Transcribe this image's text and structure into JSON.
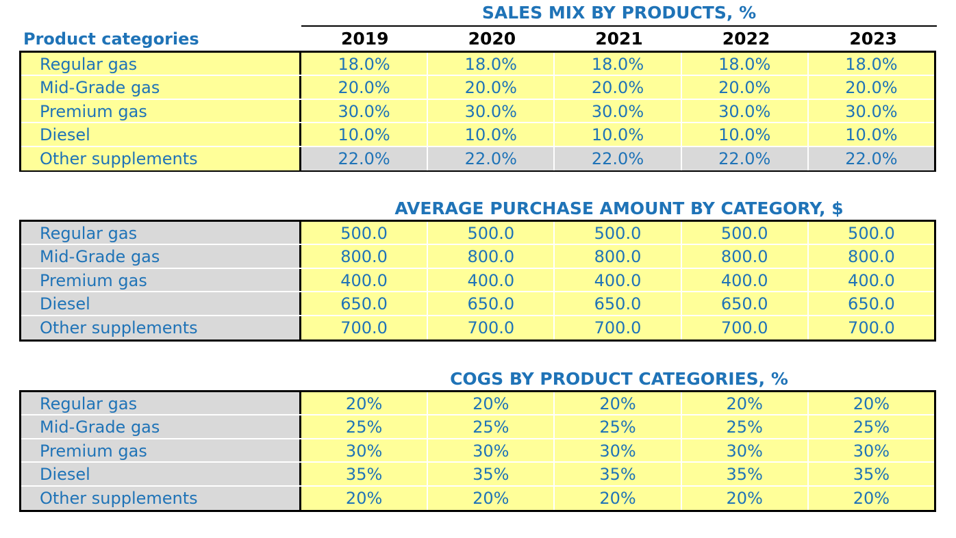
{
  "header": {
    "category_label": "Product categories",
    "years": [
      "2019",
      "2020",
      "2021",
      "2022",
      "2023"
    ]
  },
  "colors": {
    "text_blue": "#1f73b7",
    "cell_yellow": "#ffff99",
    "cell_gray": "#d9d9d9"
  },
  "sales_mix": {
    "title": "SALES MIX BY PRODUCTS, %",
    "rows": [
      {
        "label": "Regular gas",
        "values": [
          "18.0%",
          "18.0%",
          "18.0%",
          "18.0%",
          "18.0%"
        ]
      },
      {
        "label": "Mid-Grade gas",
        "values": [
          "20.0%",
          "20.0%",
          "20.0%",
          "20.0%",
          "20.0%"
        ]
      },
      {
        "label": "Premium gas",
        "values": [
          "30.0%",
          "30.0%",
          "30.0%",
          "30.0%",
          "30.0%"
        ]
      },
      {
        "label": "Diesel",
        "values": [
          "10.0%",
          "10.0%",
          "10.0%",
          "10.0%",
          "10.0%"
        ]
      },
      {
        "label": "Other supplements",
        "values": [
          "22.0%",
          "22.0%",
          "22.0%",
          "22.0%",
          "22.0%"
        ]
      }
    ]
  },
  "avg_purchase": {
    "title": "AVERAGE PURCHASE AMOUNT BY CATEGORY, $",
    "rows": [
      {
        "label": "Regular gas",
        "values": [
          "500.0",
          "500.0",
          "500.0",
          "500.0",
          "500.0"
        ]
      },
      {
        "label": "Mid-Grade gas",
        "values": [
          "800.0",
          "800.0",
          "800.0",
          "800.0",
          "800.0"
        ]
      },
      {
        "label": "Premium gas",
        "values": [
          "400.0",
          "400.0",
          "400.0",
          "400.0",
          "400.0"
        ]
      },
      {
        "label": "Diesel",
        "values": [
          "650.0",
          "650.0",
          "650.0",
          "650.0",
          "650.0"
        ]
      },
      {
        "label": "Other supplements",
        "values": [
          "700.0",
          "700.0",
          "700.0",
          "700.0",
          "700.0"
        ]
      }
    ]
  },
  "cogs": {
    "title": "COGS BY PRODUCT CATEGORIES, %",
    "rows": [
      {
        "label": "Regular gas",
        "values": [
          "20%",
          "20%",
          "20%",
          "20%",
          "20%"
        ]
      },
      {
        "label": "Mid-Grade gas",
        "values": [
          "25%",
          "25%",
          "25%",
          "25%",
          "25%"
        ]
      },
      {
        "label": "Premium gas",
        "values": [
          "30%",
          "30%",
          "30%",
          "30%",
          "30%"
        ]
      },
      {
        "label": "Diesel",
        "values": [
          "35%",
          "35%",
          "35%",
          "35%",
          "35%"
        ]
      },
      {
        "label": "Other supplements",
        "values": [
          "20%",
          "20%",
          "20%",
          "20%",
          "20%"
        ]
      }
    ]
  }
}
